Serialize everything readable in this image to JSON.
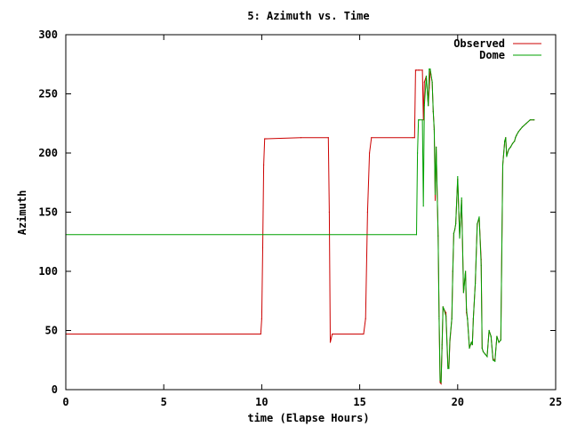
{
  "chart_data": {
    "type": "line",
    "title": "5: Azimuth vs. Time",
    "xlabel": "time (Elapse Hours)",
    "ylabel": "Azimuth",
    "xlim": [
      0,
      25
    ],
    "ylim": [
      0,
      300
    ],
    "xticks": [
      0,
      5,
      10,
      15,
      20,
      25
    ],
    "yticks": [
      0,
      50,
      100,
      150,
      200,
      250,
      300
    ],
    "xtick_labels": [
      "0",
      "5",
      "10",
      "15",
      "20",
      "25"
    ],
    "ytick_labels": [
      "0",
      "50",
      "100",
      "150",
      "200",
      "250",
      "300"
    ],
    "grid": false,
    "legend_position": "top-right",
    "series": [
      {
        "name": "Observed",
        "color": "#cc0000",
        "x": [
          0,
          9.95,
          10.0,
          10.05,
          10.1,
          10.15,
          10.2,
          10.25,
          12.0,
          13.4,
          13.45,
          13.5,
          13.6,
          15.2,
          15.3,
          15.4,
          15.5,
          15.6,
          17.7,
          17.8,
          17.85,
          17.9,
          18.0,
          18.05,
          18.2,
          18.25,
          18.3,
          18.4,
          18.5,
          18.55,
          18.6,
          18.7,
          18.75,
          18.8,
          18.85,
          18.9,
          19.0,
          19.05,
          19.1,
          19.15,
          19.2,
          19.25,
          19.3,
          19.4,
          19.5,
          19.55,
          19.6,
          19.7,
          19.75,
          19.8,
          19.85,
          19.9,
          20.0,
          20.1,
          20.2,
          20.3,
          20.4,
          20.45,
          20.5,
          20.6,
          20.7,
          20.75,
          20.8,
          20.9,
          21.0,
          21.1,
          21.2,
          21.25,
          21.3,
          21.4,
          21.5,
          21.6,
          21.7,
          21.8,
          21.9,
          22.0,
          22.1,
          22.2,
          22.3,
          22.4,
          22.45,
          22.5,
          22.6,
          22.7,
          22.8,
          22.9,
          22.95,
          23.0,
          23.1,
          23.2,
          23.3,
          23.5,
          23.7,
          23.9
        ],
        "values": [
          47,
          47,
          60,
          120,
          190,
          212,
          212,
          212,
          213,
          213,
          150,
          40,
          47,
          47,
          60,
          150,
          200,
          213,
          213,
          213,
          270,
          270,
          270,
          270,
          270,
          228,
          260,
          265,
          240,
          255,
          270,
          260,
          235,
          220,
          160,
          205,
          130,
          62,
          6,
          5,
          35,
          70,
          68,
          65,
          20,
          18,
          40,
          60,
          100,
          132,
          135,
          140,
          178,
          130,
          160,
          82,
          100,
          65,
          60,
          35,
          40,
          38,
          60,
          90,
          140,
          145,
          110,
          35,
          32,
          30,
          28,
          50,
          45,
          26,
          25,
          45,
          40,
          42,
          190,
          210,
          213,
          198,
          203,
          205,
          208,
          210,
          213,
          215,
          218,
          220,
          222,
          225,
          228,
          228
        ]
      },
      {
        "name": "Dome",
        "color": "#00a000",
        "x": [
          0,
          17.9,
          17.95,
          18.0,
          18.05,
          18.2,
          18.25,
          18.3,
          18.4,
          18.5,
          18.55,
          18.6,
          18.7,
          18.75,
          18.8,
          18.85,
          18.9,
          19.0,
          19.05,
          19.1,
          19.15,
          19.2,
          19.25,
          19.3,
          19.4,
          19.5,
          19.55,
          19.6,
          19.7,
          19.75,
          19.8,
          19.85,
          19.9,
          20.0,
          20.1,
          20.2,
          20.3,
          20.4,
          20.45,
          20.5,
          20.6,
          20.7,
          20.75,
          20.8,
          20.9,
          21.0,
          21.1,
          21.2,
          21.25,
          21.3,
          21.4,
          21.5,
          21.6,
          21.7,
          21.8,
          21.9,
          22.0,
          22.1,
          22.2,
          22.3,
          22.4,
          22.45,
          22.5,
          22.6,
          22.7,
          22.8,
          22.9,
          22.95,
          23.0,
          23.1,
          23.2,
          23.3,
          23.5,
          23.7,
          23.9
        ],
        "values": [
          131,
          131,
          200,
          228,
          228,
          228,
          155,
          240,
          265,
          240,
          271,
          271,
          260,
          235,
          220,
          165,
          205,
          130,
          60,
          8,
          6,
          38,
          70,
          68,
          62,
          18,
          18,
          42,
          60,
          100,
          132,
          135,
          140,
          180,
          128,
          162,
          82,
          100,
          68,
          60,
          35,
          40,
          38,
          60,
          90,
          140,
          146,
          105,
          35,
          32,
          30,
          28,
          50,
          45,
          25,
          24,
          45,
          40,
          42,
          190,
          210,
          213,
          197,
          203,
          205,
          208,
          210,
          213,
          215,
          218,
          220,
          222,
          225,
          228,
          228
        ]
      }
    ]
  }
}
